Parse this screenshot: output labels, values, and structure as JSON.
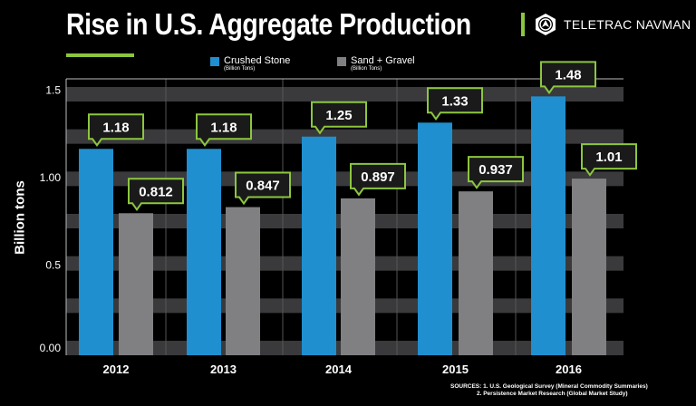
{
  "header": {
    "brand": "TELETRAC NAVMAN",
    "brand_logo_icon": "teletrac-navman-logo-icon"
  },
  "chart_data": {
    "type": "bar",
    "title": "Rise in U.S. Aggregate Production",
    "ylabel": "Billion tons",
    "xlabel": "",
    "ylim": [
      0,
      1.5
    ],
    "yticks": [
      {
        "value": 0,
        "label": "0.00"
      },
      {
        "value": 0.5,
        "label": "0.5"
      },
      {
        "value": 1.0,
        "label": "1.00"
      },
      {
        "value": 1.5,
        "label": "1.5"
      }
    ],
    "categories": [
      "2012",
      "2013",
      "2014",
      "2015",
      "2016"
    ],
    "series": [
      {
        "name": "Crushed Stone",
        "unit": "(Billion Tons)",
        "color": "#1f8fd0",
        "values": [
          1.18,
          1.18,
          1.25,
          1.33,
          1.48
        ],
        "labels": [
          "1.18",
          "1.18",
          "1.25",
          "1.33",
          "1.48"
        ]
      },
      {
        "name": "Sand + Gravel",
        "unit": "(Billion Tons)",
        "color": "#808083",
        "values": [
          0.812,
          0.847,
          0.897,
          0.937,
          1.01
        ],
        "labels": [
          "0.812",
          "0.847",
          "0.897",
          "0.937",
          "1.01"
        ]
      }
    ],
    "legend_position": "top",
    "grid": true,
    "callout_border_color": "#8cc63f",
    "accent_color": "#8cc63f"
  },
  "sources": {
    "line1": "SOURCES: 1. U.S. Geological Survey (Mineral Commodity Summaries)",
    "line2": "2. Persistence Market Research (Global Market Study)"
  }
}
